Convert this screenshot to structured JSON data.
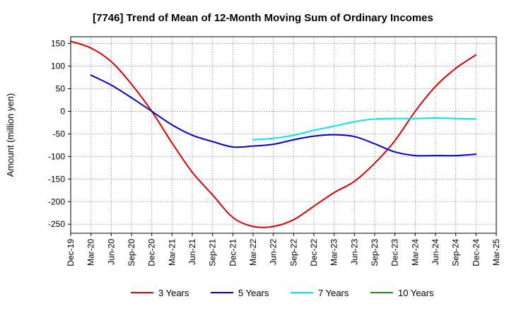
{
  "chart_data": {
    "type": "line",
    "title": "[7746]  Trend of Mean of 12-Month Moving Sum of Ordinary Incomes",
    "xlabel": "",
    "ylabel": "Amount (million yen)",
    "ylim": [
      -270,
      165
    ],
    "yticks": [
      150,
      100,
      50,
      0,
      -50,
      -100,
      -150,
      -200,
      -250
    ],
    "ytick_labels": [
      "150",
      "100",
      "50",
      "0",
      "-50",
      "-100",
      "-150",
      "-200",
      "-250"
    ],
    "xticks": [
      "Dec-19",
      "Mar-20",
      "Jun-20",
      "Sep-20",
      "Dec-20",
      "Mar-21",
      "Jun-21",
      "Sep-21",
      "Dec-21",
      "Mar-22",
      "Jun-22",
      "Sep-22",
      "Dec-22",
      "Mar-23",
      "Jun-23",
      "Sep-23",
      "Dec-23",
      "Mar-24",
      "Jun-24",
      "Sep-24",
      "Dec-24",
      "Mar-25"
    ],
    "grid": true,
    "legend_position": "bottom",
    "series": [
      {
        "name": "3 Years",
        "color": "#dd0000",
        "x": [
          0,
          1,
          2,
          3,
          4,
          5,
          6,
          7,
          8,
          9,
          10,
          11,
          12,
          13,
          14,
          15,
          16,
          17,
          18,
          19,
          20
        ],
        "values": [
          155,
          140,
          110,
          60,
          0,
          -70,
          -135,
          -185,
          -235,
          -255,
          -255,
          -240,
          -210,
          -180,
          -155,
          -115,
          -65,
          0,
          55,
          95,
          125
        ]
      },
      {
        "name": "5 Years",
        "color": "#0000cc",
        "x": [
          1,
          2,
          3,
          4,
          5,
          6,
          7,
          8,
          9,
          10,
          11,
          12,
          13,
          14,
          15,
          16,
          17,
          18,
          19,
          20
        ],
        "values": [
          80,
          58,
          30,
          0,
          -30,
          -53,
          -67,
          -79,
          -77,
          -73,
          -63,
          -55,
          -52,
          -56,
          -72,
          -90,
          -98,
          -98,
          -98,
          -95
        ]
      },
      {
        "name": "7 Years",
        "color": "#00e5ee",
        "x": [
          9,
          10,
          11,
          12,
          13,
          14,
          15,
          16,
          17,
          18,
          19,
          20
        ],
        "values": [
          -63,
          -60,
          -53,
          -42,
          -33,
          -23,
          -17,
          -16,
          -16,
          -15,
          -16,
          -17
        ]
      },
      {
        "name": "10 Years",
        "color": "#228b22",
        "x": [],
        "values": []
      }
    ]
  }
}
